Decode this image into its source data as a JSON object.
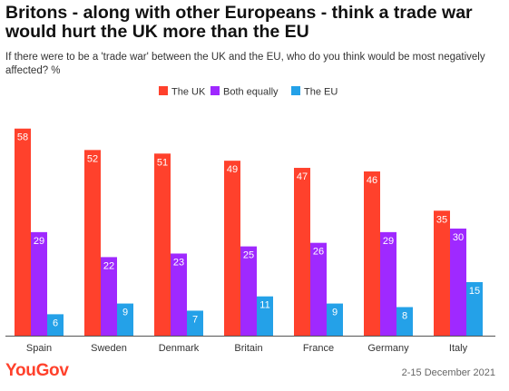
{
  "chart_data": {
    "type": "bar",
    "title": "Britons - along with other Europeans - think a trade war would hurt the UK more than the EU",
    "subtitle": "If there were to be a 'trade war' between the UK and the EU, who do you think would be most negatively affected? %",
    "categories": [
      "Spain",
      "Sweden",
      "Denmark",
      "Britain",
      "France",
      "Germany",
      "Italy"
    ],
    "series": [
      {
        "name": "The UK",
        "color": "#ff412c",
        "values": [
          58,
          52,
          51,
          49,
          47,
          46,
          35
        ]
      },
      {
        "name": "Both equally",
        "color": "#9f29ff",
        "values": [
          29,
          22,
          23,
          25,
          26,
          29,
          30
        ]
      },
      {
        "name": "The EU",
        "color": "#24a1e8",
        "values": [
          6,
          9,
          7,
          11,
          9,
          8,
          15
        ]
      }
    ],
    "ylim": [
      0,
      62
    ],
    "grid": false,
    "legend_position": "top-center"
  },
  "footer": {
    "brand": "YouGov",
    "date": "2-15 December 2021"
  }
}
